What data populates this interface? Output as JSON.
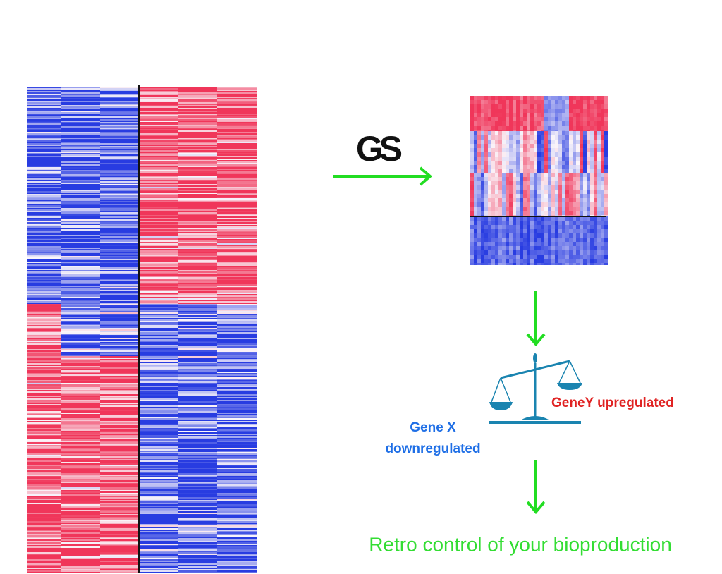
{
  "logo": "GS",
  "labels": {
    "gene_x": [
      "Gene X",
      "downregulated"
    ],
    "gene_y": "GeneY upregulated"
  },
  "caption": "Retro control of your bioproduction"
}
